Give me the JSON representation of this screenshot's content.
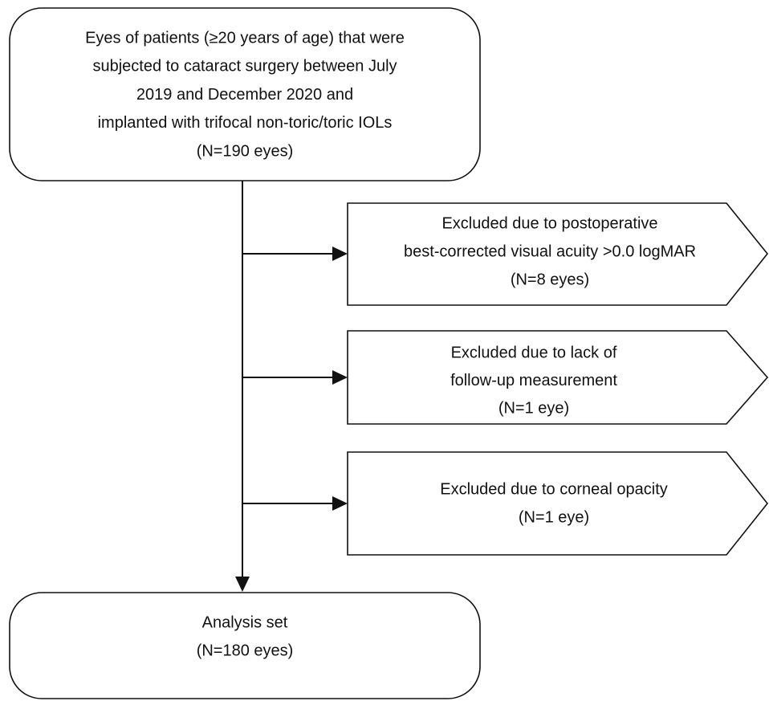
{
  "start": {
    "lines": [
      "Eyes of patients (≥20 years of age) that were",
      "subjected to cataract surgery between July",
      "2019 and December 2020 and",
      "implanted with trifocal non-toric/toric IOLs",
      "(N=190 eyes)"
    ]
  },
  "exclusions": [
    {
      "lines": [
        "Excluded due to postoperative",
        "best-corrected visual acuity >0.0 logMAR",
        "(N=8 eyes)"
      ]
    },
    {
      "lines": [
        "Excluded due to lack of",
        "follow-up measurement",
        "(N=1 eye)"
      ]
    },
    {
      "lines": [
        "Excluded due to corneal opacity",
        "(N=1 eye)"
      ]
    }
  ],
  "result": {
    "lines": [
      "Analysis set",
      "(N=180 eyes)"
    ]
  }
}
